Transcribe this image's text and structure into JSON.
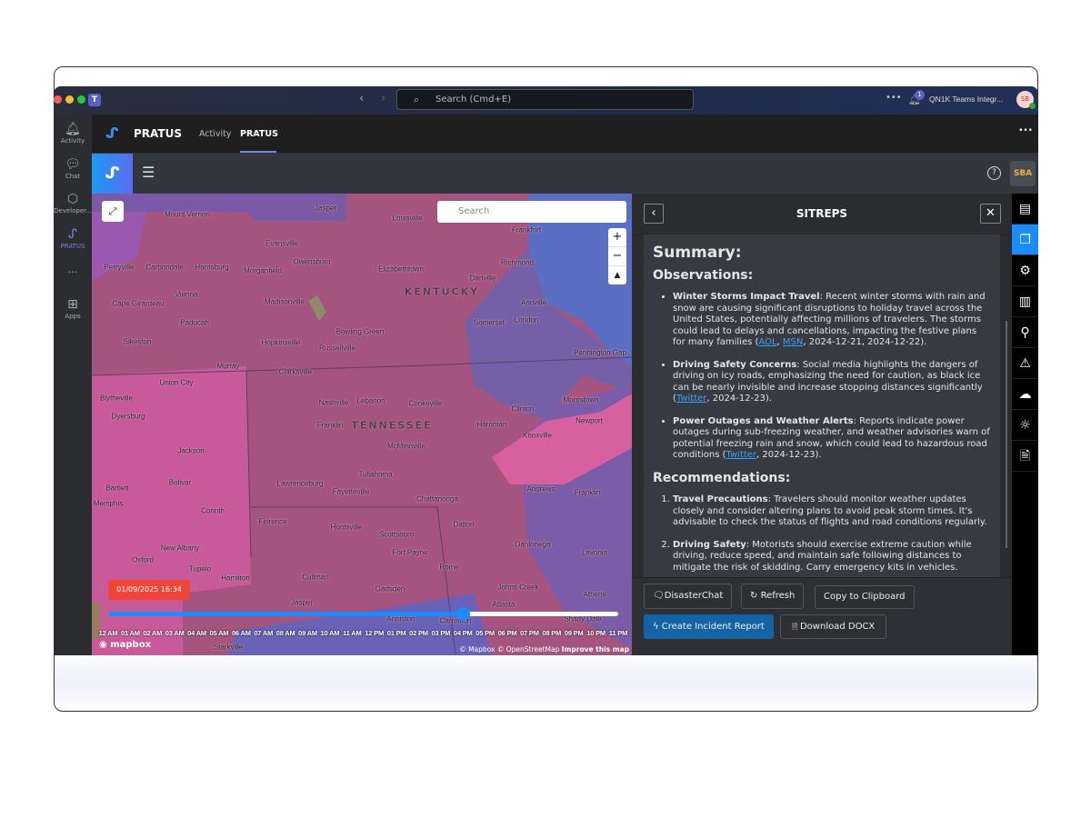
{
  "titlebar": {
    "search_placeholder": "Search (Cmd+E)",
    "notification_count": "1",
    "account_name": "QN1K Teams Integr...",
    "avatar_initials": "SB"
  },
  "rail": {
    "items": [
      {
        "label": "Activity",
        "icon": "bell-icon"
      },
      {
        "label": "Chat",
        "icon": "chat-icon"
      },
      {
        "label": "Developer...",
        "icon": "developer-icon"
      },
      {
        "label": "PRATUS",
        "icon": "pratus-icon"
      },
      {
        "label": "...",
        "icon": "more-icon"
      },
      {
        "label": "Apps",
        "icon": "plus-icon"
      }
    ]
  },
  "app": {
    "name": "PRATUS",
    "tabs": [
      {
        "label": "Activity"
      },
      {
        "label": "PRATUS",
        "active": true
      }
    ],
    "user_badge": "SBA"
  },
  "map": {
    "search_placeholder": "Search",
    "date_badge": "01/09/2025 16:34",
    "timeline_progress": 0.695,
    "hours": [
      "12 AM",
      "01 AM",
      "02 AM",
      "03 AM",
      "04 AM",
      "05 AM",
      "06 AM",
      "07 AM",
      "08 AM",
      "09 AM",
      "10 AM",
      "11 AM",
      "12 PM",
      "01 PM",
      "02 PM",
      "03 PM",
      "04 PM",
      "05 PM",
      "06 PM",
      "07 PM",
      "08 PM",
      "09 PM",
      "10 PM",
      "11 PM"
    ],
    "attribution": "© Mapbox © OpenStreetMap",
    "improve": "Improve this map",
    "logo": "mapbox",
    "states": [
      "KENTUCKY",
      "TENNESSEE"
    ],
    "cities": [
      "Mount Vernon",
      "Jasper",
      "Louisville",
      "Frankfort",
      "Evansville",
      "Owensboro",
      "Perryville",
      "Carbondale",
      "Harrisburg",
      "Morganfield",
      "Elizabethtown",
      "Richmond",
      "Danville",
      "Cape Girardeau",
      "Vienna",
      "Madisonville",
      "Annville",
      "London",
      "Somerset",
      "Paducah",
      "Bowling Green",
      "Sikeston",
      "Hopkinsville",
      "Russellville",
      "Pennington Gap",
      "Murray",
      "Clarksville",
      "Union City",
      "Dyersburg",
      "Blytheville",
      "Nashville",
      "Lebanon",
      "Cookeville",
      "Clinton",
      "Morristown",
      "Franklin",
      "Harriman",
      "Knoxville",
      "Newport",
      "Jackson",
      "McMinnville",
      "Tullahoma",
      "Lawrenceburg",
      "Fayetteville",
      "Bolivar",
      "Bartlett",
      "Memphis",
      "Corinth",
      "Chattanooga",
      "Andrews",
      "Franklin",
      "Florence",
      "Huntsville",
      "Scottsboro",
      "Dalton",
      "Fort Payne",
      "New Albany",
      "Oxford",
      "Tupelo",
      "Rome",
      "Dahlonega",
      "Lavonia",
      "Hamilton",
      "Cullman",
      "Gadsden",
      "Johns Creek",
      "Athens",
      "Jasper",
      "Atlanta",
      "Anniston",
      "Carrollton",
      "Starkville",
      "Shady Dale"
    ],
    "colors": {
      "pink": "#a4547f",
      "purple": "#7a5aa6",
      "blue": "#5a6ec4",
      "bright_pink": "#d7609f"
    }
  },
  "sitreps": {
    "title": "SITREPS",
    "summary_heading": "Summary:",
    "observations_heading": "Observations:",
    "observations": [
      {
        "title": "Winter Storms Impact Travel",
        "text": ": Recent winter storms with rain and snow are causing significant disruptions to holiday travel across the United States, potentially affecting millions of travelers. The storms could lead to delays and cancellations, impacting the festive plans for many families (",
        "links": [
          "AOL",
          "MSN"
        ],
        "tail": ", 2024-12-21, 2024-12-22)."
      },
      {
        "title": "Driving Safety Concerns",
        "text": ": Social media highlights the dangers of driving on icy roads, emphasizing the need for caution, as black ice can be nearly invisible and increase stopping distances significantly (",
        "links": [
          "Twitter"
        ],
        "tail": ", 2024-12-23)."
      },
      {
        "title": "Power Outages and Weather Alerts",
        "text": ": Reports indicate power outages during sub-freezing weather, and weather advisories warn of potential freezing rain and snow, which could lead to hazardous road conditions (",
        "links": [
          "Twitter"
        ],
        "tail": ", 2024-12-23)."
      }
    ],
    "recommendations_heading": "Recommendations:",
    "recommendations": [
      {
        "title": "Travel Precautions",
        "text": ": Travelers should monitor weather updates closely and consider altering plans to avoid peak storm times. It's advisable to check the status of flights and road conditions regularly."
      },
      {
        "title": "Driving Safety",
        "text": ": Motorists should exercise extreme caution while driving, reduce speed, and maintain safe following distances to mitigate the risk of skidding. Carry emergency kits in vehicles."
      }
    ],
    "buttons": {
      "disaster_chat": "DisasterChat",
      "refresh": "Refresh",
      "copy": "Copy to Clipboard",
      "incident": "Create Incident Report",
      "docx": "Download DOCX"
    }
  },
  "iconrail": [
    "chat-icon",
    "sitreps-icon",
    "gear-icon",
    "map-icon",
    "location-pin-icon",
    "warning-icon",
    "cloud-icon",
    "lightbulb-icon",
    "document-icon"
  ]
}
